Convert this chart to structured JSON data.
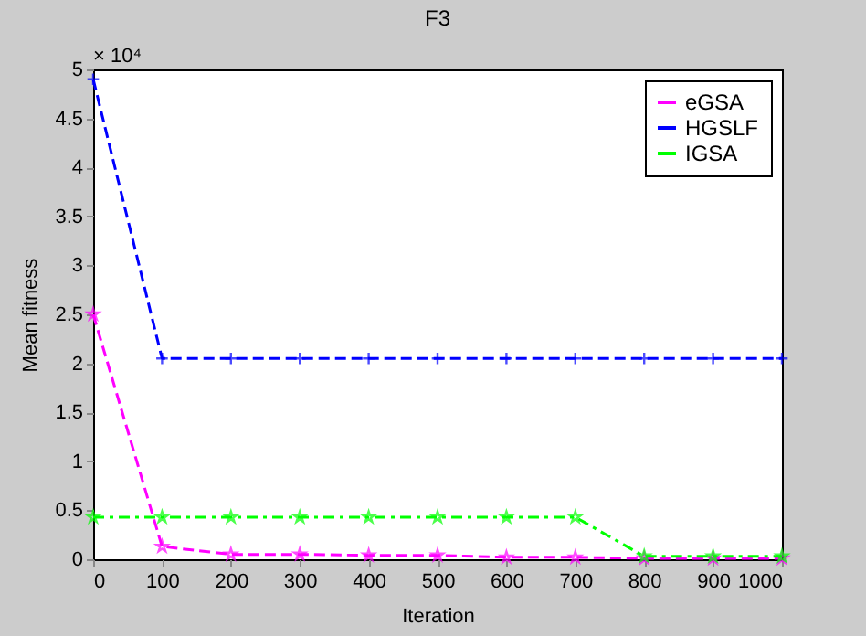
{
  "chart_data": {
    "type": "line",
    "title": "F3",
    "xlabel": "Iteration",
    "ylabel": "Mean fitness",
    "x": [
      0,
      100,
      200,
      300,
      400,
      500,
      600,
      700,
      800,
      900,
      1000
    ],
    "series": [
      {
        "name": "eGSA",
        "color": "#ff00ff",
        "line_style": "dashed",
        "marker": "star",
        "values": [
          2.5,
          0.13,
          0.05,
          0.05,
          0.04,
          0.04,
          0.02,
          0.02,
          0.01,
          0.01,
          0.01
        ]
      },
      {
        "name": "HGSLF",
        "color": "#0000ff",
        "line_style": "dashed",
        "marker": "cross",
        "values": [
          4.9,
          2.05,
          2.05,
          2.05,
          2.05,
          2.05,
          2.05,
          2.05,
          2.05,
          2.05,
          2.05
        ]
      },
      {
        "name": "IGSA",
        "color": "#00ff00",
        "line_style": "dashdot",
        "marker": "star",
        "values": [
          0.43,
          0.43,
          0.43,
          0.43,
          0.43,
          0.43,
          0.43,
          0.43,
          0.03,
          0.03,
          0.03
        ]
      }
    ],
    "xlim": [
      0,
      1000
    ],
    "xticks": [
      0,
      100,
      200,
      300,
      400,
      500,
      600,
      700,
      800,
      900,
      1000
    ],
    "ylim": [
      0,
      5
    ],
    "yticks": [
      0,
      0.5,
      1,
      1.5,
      2,
      2.5,
      3,
      3.5,
      4,
      4.5,
      5
    ],
    "annotations": [
      "× 10⁴"
    ],
    "legend": "top right",
    "grid": false
  }
}
